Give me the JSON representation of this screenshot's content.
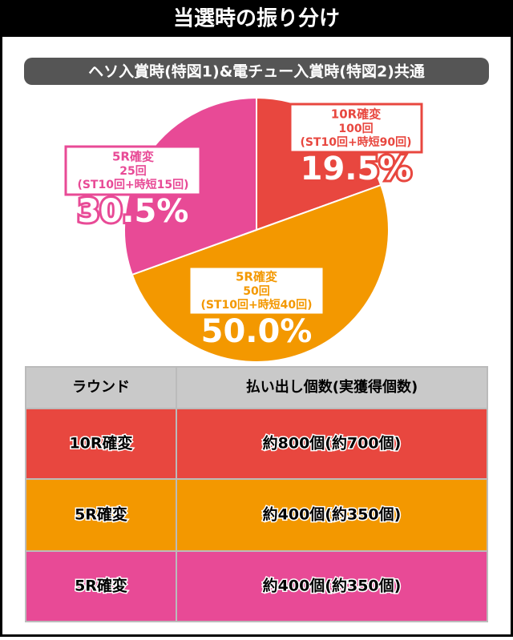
{
  "header": {
    "title": "当選時の振り分け",
    "subtitle": "ヘソ入賞時(特図1)&電チュー入賞時(特図2)共通"
  },
  "chart_data": {
    "type": "pie",
    "categories": [
      "10R確変",
      "5R確変",
      "5R確変"
    ],
    "details": [
      [
        "100回",
        "(ST10回+時短90回)"
      ],
      [
        "50回",
        "(ST10回+時短40回)"
      ],
      [
        "25回",
        "(ST10回+時短15回)"
      ]
    ],
    "values": [
      19.5,
      50.0,
      30.5
    ],
    "value_labels": [
      "19.5%",
      "50.0%",
      "30.5%"
    ],
    "colors": [
      "#e8473f",
      "#f39800",
      "#e84a96"
    ]
  },
  "table": {
    "header": [
      "ラウンド",
      "払い出し個数(実獲得個数)"
    ],
    "rows": [
      [
        "10R確変",
        "約800個(約700個)"
      ],
      [
        "5R確変",
        "約400個(約350個)"
      ],
      [
        "5R確変",
        "約400個(約350個)"
      ]
    ]
  }
}
